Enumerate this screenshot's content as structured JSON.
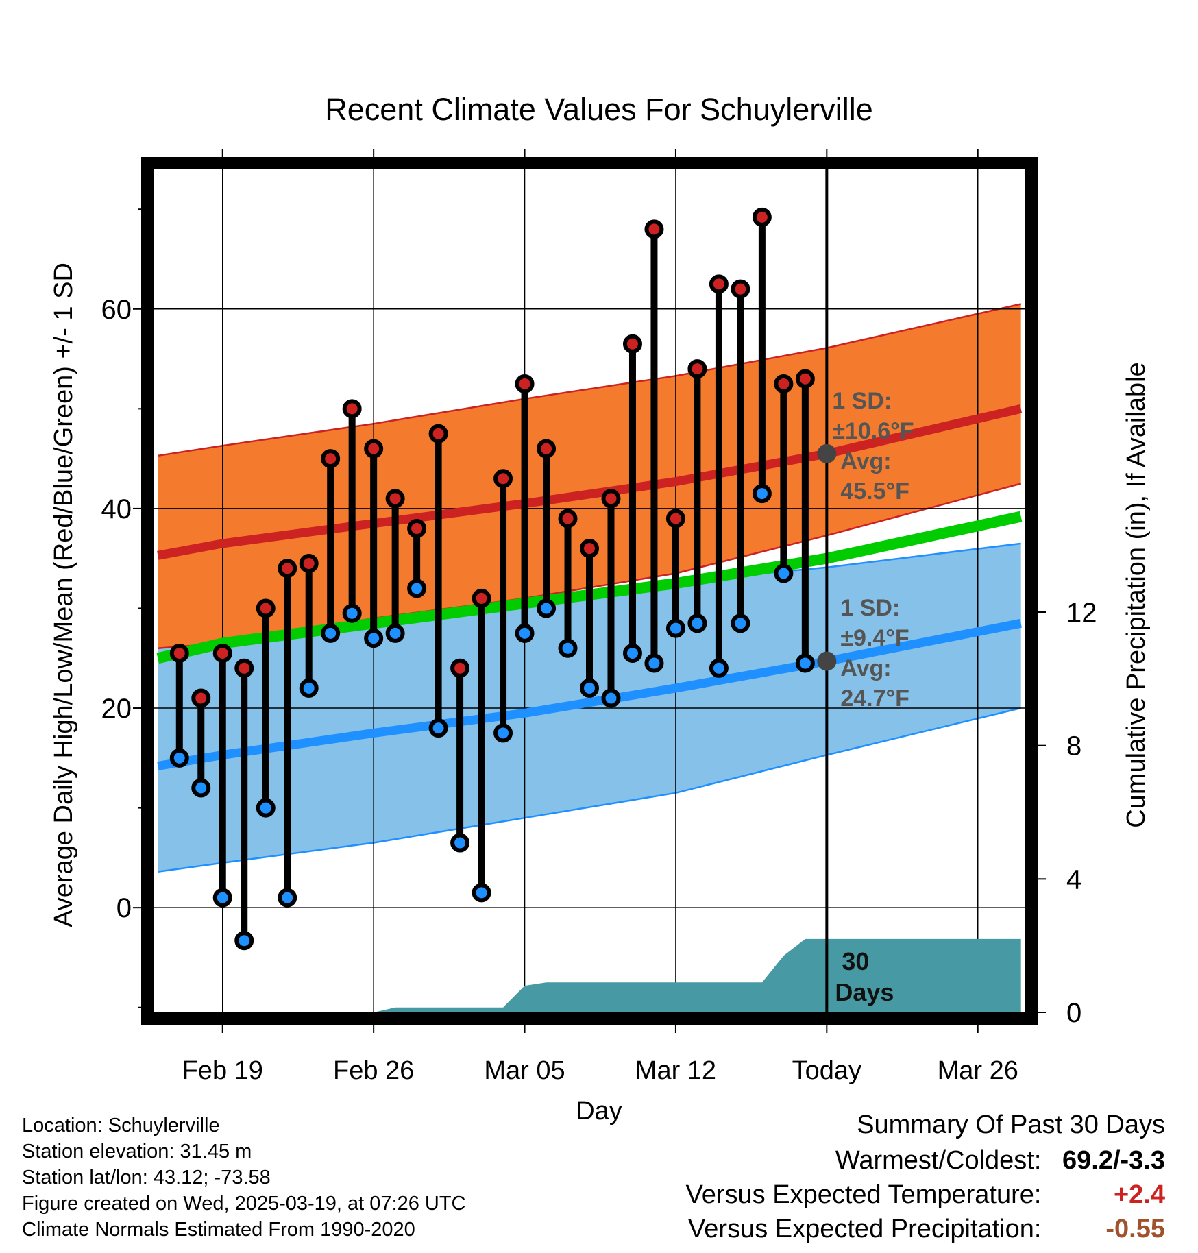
{
  "chart_data": {
    "type": "line",
    "title": "Recent Climate Values For Schuylerville",
    "xlabel": "Day",
    "ylabel": "Average Daily High/Low/Mean (Red/Blue/Green) +/- 1 SD",
    "y2label": "Cumulative Precipitation (in), If Available",
    "x_tick_labels": [
      "Feb 19",
      "Feb 26",
      "Mar 05",
      "Mar 12",
      "Today",
      "Mar 26"
    ],
    "x_tick_day": [
      0,
      7,
      14,
      21,
      28,
      35
    ],
    "y_ticks": [
      0,
      20,
      40,
      60
    ],
    "y_range": [
      -10.5,
      74
    ],
    "y2_ticks": [
      0,
      4,
      8,
      12
    ],
    "y2_range": [
      0,
      12
    ],
    "day_range": [
      -3.2,
      37.2
    ],
    "grid": true,
    "daily_observations": {
      "day": [
        -2,
        -1,
        0,
        1,
        2,
        3,
        4,
        5,
        6,
        7,
        8,
        9,
        10,
        11,
        12,
        13,
        14,
        15,
        16,
        17,
        18,
        19,
        20,
        21,
        22,
        23,
        24,
        25,
        26,
        27
      ],
      "high": [
        25.5,
        21.0,
        25.5,
        24.0,
        30.0,
        34.0,
        34.5,
        45.0,
        50.0,
        46.0,
        41.0,
        38.0,
        47.5,
        24.0,
        31.0,
        43.0,
        52.5,
        46.0,
        39.0,
        36.0,
        41.0,
        56.5,
        68.0,
        39.0,
        54.0,
        62.5,
        62.0,
        69.2,
        52.5,
        53.0
      ],
      "low": [
        15.0,
        12.0,
        1.0,
        -3.3,
        10.0,
        1.0,
        22.0,
        27.5,
        29.5,
        27.0,
        27.5,
        32.0,
        18.0,
        6.5,
        1.5,
        17.5,
        27.5,
        30.0,
        26.0,
        22.0,
        21.0,
        25.5,
        24.5,
        28.0,
        28.5,
        24.0,
        28.5,
        41.5,
        33.5,
        24.5
      ]
    },
    "normals": {
      "day": [
        -3,
        0,
        7,
        14,
        21,
        28,
        37
      ],
      "avg_high": [
        35.3,
        36.5,
        38.5,
        40.5,
        42.7,
        45.5,
        50.0
      ],
      "avg_high_upper": [
        45.3,
        46.3,
        48.5,
        51.0,
        53.3,
        56.1,
        60.5
      ],
      "avg_high_lower": [
        26.0,
        26.5,
        29.0,
        31.0,
        33.5,
        37.3,
        42.5
      ],
      "avg_low": [
        14.2,
        15.3,
        17.5,
        19.5,
        22.0,
        24.7,
        28.5
      ],
      "avg_low_upper": [
        26.0,
        27.0,
        29.0,
        30.5,
        32.7,
        34.1,
        36.5
      ],
      "avg_low_lower": [
        3.6,
        4.5,
        6.5,
        9.0,
        11.5,
        15.3,
        20.0
      ],
      "avg_mean": [
        25.0,
        26.5,
        28.5,
        30.5,
        32.5,
        35.0,
        39.2
      ]
    },
    "precipitation": {
      "day": [
        -3,
        7,
        8,
        13,
        14,
        15,
        25,
        26,
        27,
        37
      ],
      "cumulative": [
        0.0,
        0.0,
        0.15,
        0.15,
        0.8,
        0.9,
        0.9,
        1.7,
        2.2,
        2.2
      ]
    },
    "annotations": {
      "high_sd_label": "1 SD:",
      "high_sd_value": "±10.6°F",
      "high_avg_label": "Avg:",
      "high_avg_value": "45.5°F",
      "low_sd_label": "1 SD:",
      "low_sd_value": "±9.4°F",
      "low_avg_label": "Avg:",
      "low_avg_value": "24.7°F",
      "window_label_1": "30",
      "window_label_2": "Days"
    },
    "colors": {
      "high_band": "#f47b2e",
      "high_line": "#cc2222",
      "low_band": "#85c1e9",
      "low_line": "#1e90ff",
      "mean_line": "#00cc00",
      "high_marker": "#cc2222",
      "low_marker": "#1e90ff",
      "precip": "#479aa3",
      "today_marker": "#444444",
      "annotation_text": "#555555"
    }
  },
  "info": {
    "location": "Location: Schuylerville",
    "elevation": "Station elevation: 31.45 m",
    "latlon": "Station lat/lon: 43.12; -73.58",
    "created": "Figure created on Wed, 2025-03-19, at 07:26 UTC",
    "normals": "Climate Normals Estimated From 1990-2020"
  },
  "summary": {
    "title": "Summary Of Past 30 Days",
    "warmest_coldest_label": "Warmest/Coldest:",
    "warmest_coldest_value": "69.2/-3.3",
    "temp_label": "Versus Expected Temperature:",
    "temp_value": "+2.4",
    "temp_color": "#cc2222",
    "precip_label": "Versus Expected Precipitation:",
    "precip_value": "-0.55",
    "precip_color": "#a0522d"
  }
}
